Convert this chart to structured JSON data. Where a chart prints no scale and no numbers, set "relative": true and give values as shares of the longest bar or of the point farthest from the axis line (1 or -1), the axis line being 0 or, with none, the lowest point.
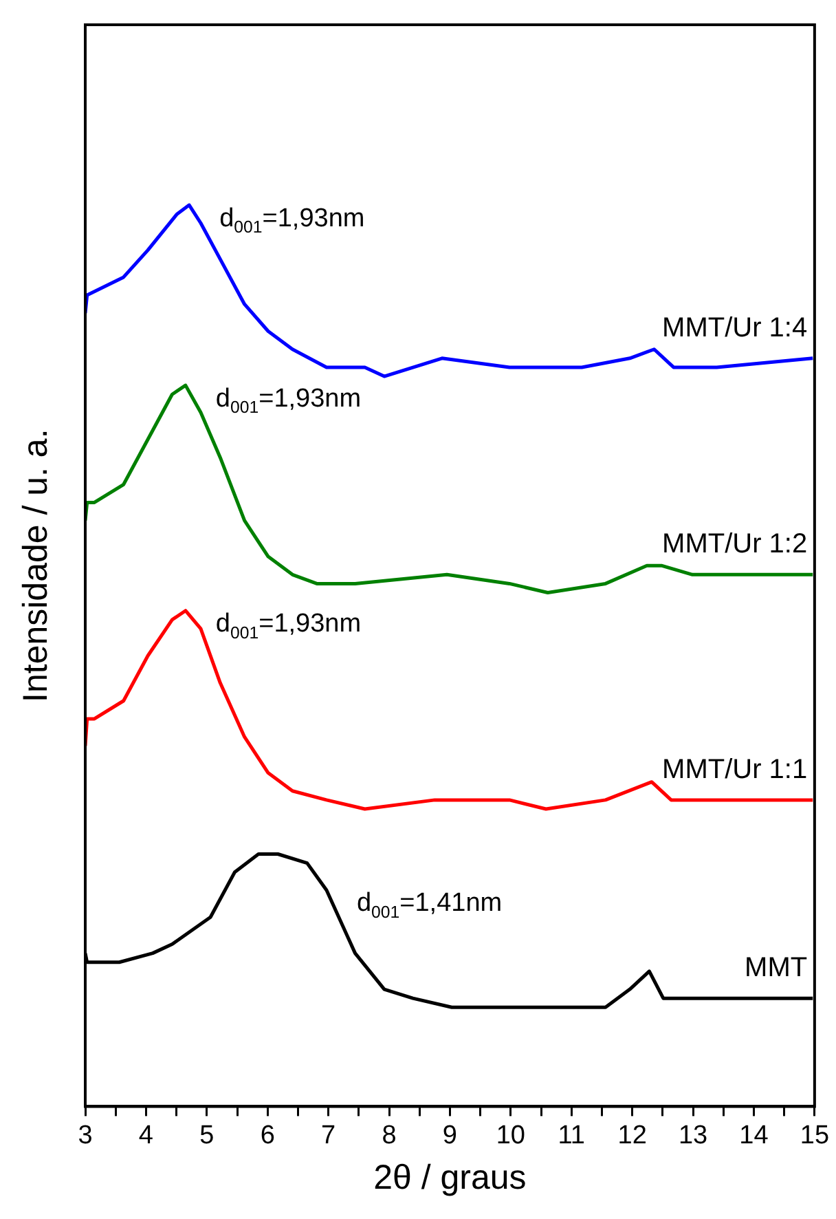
{
  "chart_data": {
    "type": "line",
    "relative": true,
    "xlabel": "2θ / graus",
    "ylabel": "Intensidade / u. a.",
    "xlim": [
      3,
      15
    ],
    "xticks": [
      3,
      {
        "value": 3.5,
        "label": null
      },
      4,
      {
        "value": 4.5,
        "label": null
      },
      5,
      {
        "value": 5.5,
        "label": null
      },
      6,
      {
        "value": 6.5,
        "label": null
      },
      7,
      {
        "value": 7.5,
        "label": null
      },
      8,
      {
        "value": 8.5,
        "label": null
      },
      9,
      {
        "value": 9.5,
        "label": null
      },
      10,
      {
        "value": 10.5,
        "label": null
      },
      11,
      {
        "value": 11.5,
        "label": null
      },
      12,
      {
        "value": 12.5,
        "label": null
      },
      13,
      {
        "value": 13.5,
        "label": null
      },
      14,
      {
        "value": 14.5,
        "label": null
      },
      15
    ],
    "grid": false,
    "legend": false,
    "marker": "none",
    "line_style": "solid",
    "series": [
      {
        "name": "MMT/Ur 1:4",
        "color": "#0000ff",
        "x": [
          3.0,
          3.03,
          3.63,
          4.03,
          4.51,
          4.71,
          4.9,
          5.22,
          5.62,
          6.01,
          6.41,
          6.97,
          7.6,
          7.92,
          8.87,
          9.98,
          11.17,
          11.96,
          12.36,
          12.68,
          13.39,
          14.97
        ],
        "values": [
          0.88,
          0.9,
          0.92,
          0.95,
          0.99,
          1.0,
          0.98,
          0.94,
          0.89,
          0.86,
          0.84,
          0.82,
          0.82,
          0.81,
          0.83,
          0.82,
          0.82,
          0.83,
          0.84,
          0.82,
          0.82,
          0.83
        ]
      },
      {
        "name": "MMT/Ur 1:2",
        "color": "#008000",
        "x": [
          3.0,
          3.03,
          3.15,
          3.63,
          4.03,
          4.43,
          4.65,
          4.9,
          5.22,
          5.62,
          6.01,
          6.41,
          6.81,
          7.44,
          8.95,
          9.98,
          10.61,
          11.56,
          12.24,
          12.48,
          12.99,
          13.94,
          14.97
        ],
        "values": [
          0.65,
          0.67,
          0.67,
          0.69,
          0.74,
          0.79,
          0.8,
          0.77,
          0.72,
          0.65,
          0.61,
          0.59,
          0.58,
          0.58,
          0.59,
          0.58,
          0.57,
          0.58,
          0.6,
          0.6,
          0.59,
          0.59,
          0.59
        ]
      },
      {
        "name": "MMT/Ur 1:1",
        "color": "#ff0000",
        "x": [
          3.0,
          3.03,
          3.15,
          3.63,
          4.03,
          4.43,
          4.65,
          4.9,
          5.22,
          5.62,
          6.01,
          6.41,
          6.97,
          7.6,
          8.75,
          9.98,
          10.58,
          11.56,
          12.32,
          12.64,
          13.39,
          14.97
        ],
        "values": [
          0.4,
          0.43,
          0.43,
          0.45,
          0.5,
          0.54,
          0.55,
          0.53,
          0.47,
          0.41,
          0.37,
          0.35,
          0.34,
          0.33,
          0.34,
          0.34,
          0.33,
          0.34,
          0.36,
          0.34,
          0.34,
          0.34
        ]
      },
      {
        "name": "MMT",
        "color": "#000000",
        "x": [
          3.0,
          3.03,
          3.56,
          4.11,
          4.43,
          5.06,
          5.46,
          5.85,
          6.17,
          6.65,
          6.97,
          7.44,
          7.92,
          8.39,
          9.03,
          9.98,
          10.77,
          11.56,
          11.96,
          12.28,
          12.51,
          13.15,
          14.97
        ],
        "values": [
          0.17,
          0.16,
          0.16,
          0.17,
          0.18,
          0.21,
          0.26,
          0.28,
          0.28,
          0.27,
          0.24,
          0.17,
          0.13,
          0.12,
          0.11,
          0.11,
          0.11,
          0.11,
          0.13,
          0.15,
          0.12,
          0.12,
          0.12
        ]
      }
    ],
    "annotations": [
      {
        "text": "d$_{001}$=1,93nm",
        "x": 4.71,
        "y": 1.0
      },
      {
        "text": "d$_{001}$=1,93nm",
        "x": 4.65,
        "y": 0.8
      },
      {
        "text": "d$_{001}$=1,93nm",
        "x": 4.65,
        "y": 0.55
      },
      {
        "text": "d$_{001}$=1,41nm",
        "x": 6.97,
        "y": 0.24
      }
    ]
  }
}
